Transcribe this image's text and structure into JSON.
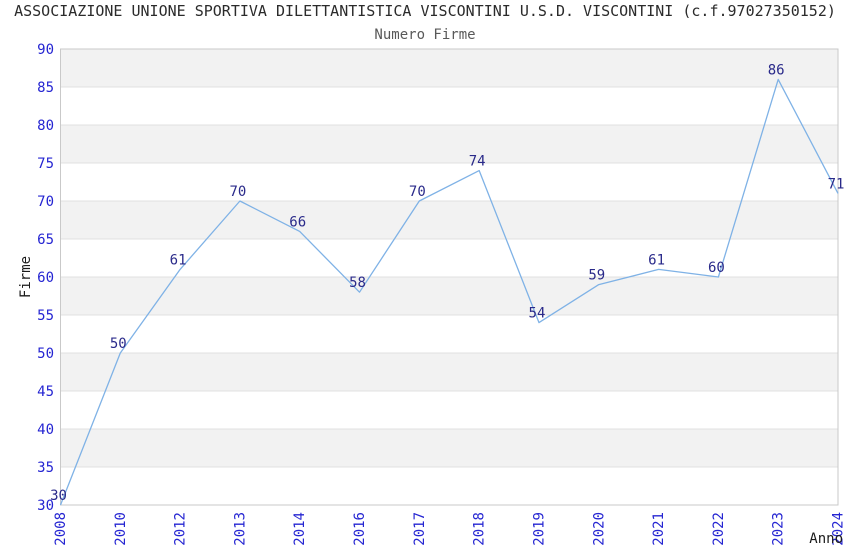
{
  "header": {
    "title": "ASSOCIAZIONE UNIONE SPORTIVA DILETTANTISTICA VISCONTINI U.S.D. VISCONTINI (c.f.97027350152)",
    "subtitle": "Numero Firme"
  },
  "chart_data": {
    "type": "line",
    "title": "ASSOCIAZIONE UNIONE SPORTIVA DILETTANTISTICA VISCONTINI U.S.D. VISCONTINI (c.f.97027350152)",
    "subtitle": "Numero Firme",
    "xlabel": "Anno",
    "ylabel": "Firme",
    "categories": [
      "2008",
      "2010",
      "2012",
      "2013",
      "2014",
      "2016",
      "2017",
      "2018",
      "2019",
      "2020",
      "2021",
      "2022",
      "2023",
      "2024"
    ],
    "values": [
      30,
      50,
      61,
      70,
      66,
      58,
      70,
      74,
      54,
      59,
      61,
      60,
      86,
      71
    ],
    "ylim": [
      30,
      90
    ],
    "ytick_step": 5,
    "yticks": [
      30,
      35,
      40,
      45,
      50,
      55,
      60,
      65,
      70,
      75,
      80,
      85,
      90
    ],
    "grid": "horizontal-bands-alternating",
    "legend": "none",
    "markers": "none",
    "data_labels_shown": true,
    "colors": {
      "line": "#7fb2e6",
      "tick_label": "#2525d2",
      "data_label": "#2a2a8a",
      "band": "#f2f2f2",
      "grid_line": "#e0e0e0",
      "border": "#c9c9c9",
      "title": "#2b2b2b",
      "subtitle": "#595959",
      "axis_title": "#1a1a1a",
      "background": "#ffffff"
    }
  }
}
